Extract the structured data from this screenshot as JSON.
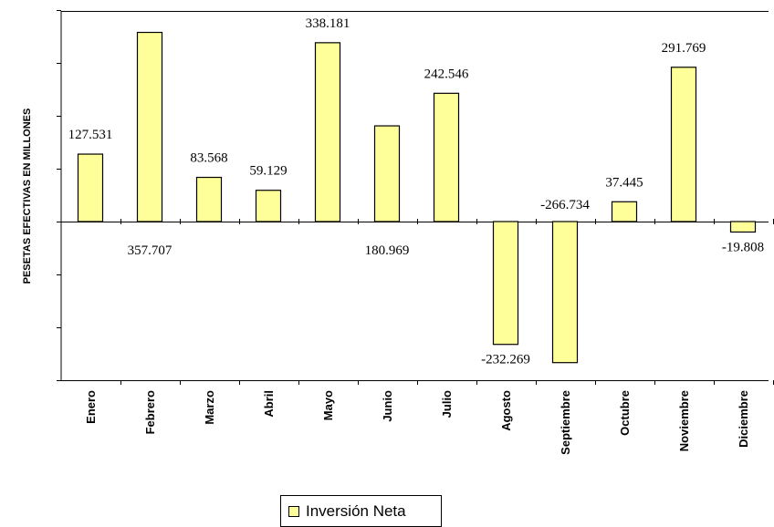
{
  "chart_data": {
    "type": "bar",
    "ylabel": "PESETAS EFECTIVAS EN MILLONES",
    "categories": [
      "Enero",
      "Febrero",
      "Marzo",
      "Abril",
      "Mayo",
      "Junio",
      "Julio",
      "Agosto",
      "Septiembre",
      "Octubre",
      "Noviembre",
      "Diciembre"
    ],
    "series": [
      {
        "name": "Inversión Neta",
        "values": [
          127.531,
          357.707,
          83.568,
          59.129,
          338.181,
          180.969,
          242.546,
          -232.269,
          -266.734,
          37.445,
          291.769,
          -19.808
        ],
        "labels": [
          "127.531",
          "357.707",
          "83.568",
          "59.129",
          "338.181",
          "180.969",
          "242.546",
          "-232.269",
          "-266.734",
          "37.445",
          "291.769",
          "-19.808"
        ]
      }
    ],
    "ylim": [
      -300,
      400
    ],
    "grid": false,
    "legend": "bottom-center",
    "colors": {
      "bar": "#ffff99",
      "stroke": "#000000"
    }
  }
}
